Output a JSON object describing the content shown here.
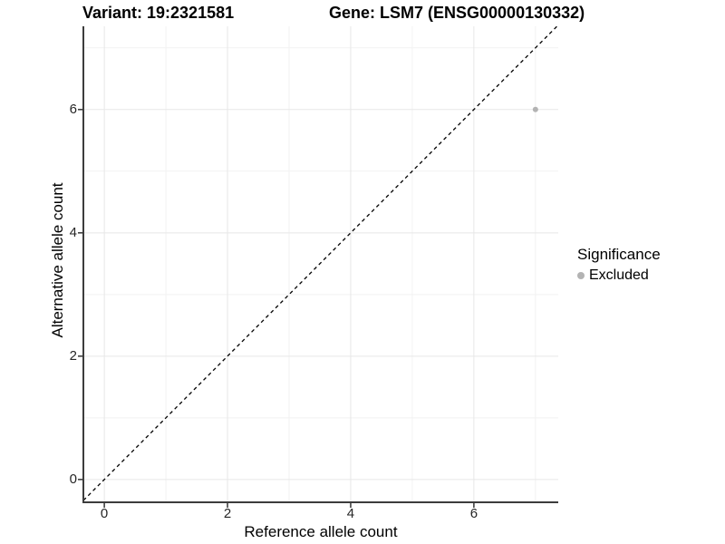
{
  "style": {
    "grid_major": "#e7e7e7",
    "grid_minor": "#f2f2f2",
    "axis_line": "#3c3c3c",
    "tick_mark": "#333333",
    "point_color": "#b3b3b3",
    "dashed_line_color": "#000000"
  },
  "legend": {
    "title": "Significance"
  },
  "chart_data": {
    "type": "scatter",
    "title_left": "Variant: 19:2321581",
    "title_right": "Gene: LSM7 (ENSG00000130332)",
    "xlabel": "Reference allele count",
    "ylabel": "Alternative allele count",
    "x_ticks": [
      0,
      2,
      4,
      6
    ],
    "y_ticks": [
      0,
      2,
      4,
      6
    ],
    "x_minor_ticks": [
      1,
      3,
      5,
      7
    ],
    "y_minor_ticks": [
      1,
      3,
      5,
      7
    ],
    "xlim": [
      -0.34,
      7.37
    ],
    "ylim": [
      -0.37,
      7.35
    ],
    "grid": true,
    "legend_title": "Significance",
    "legend_position": "right",
    "series": [
      {
        "name": "Excluded",
        "color": "#b3b3b3",
        "points": [
          {
            "x": 7,
            "y": 6
          }
        ]
      }
    ],
    "reference_line": {
      "kind": "identity",
      "equation": "y = x",
      "style": "dashed",
      "color": "#000000"
    }
  }
}
